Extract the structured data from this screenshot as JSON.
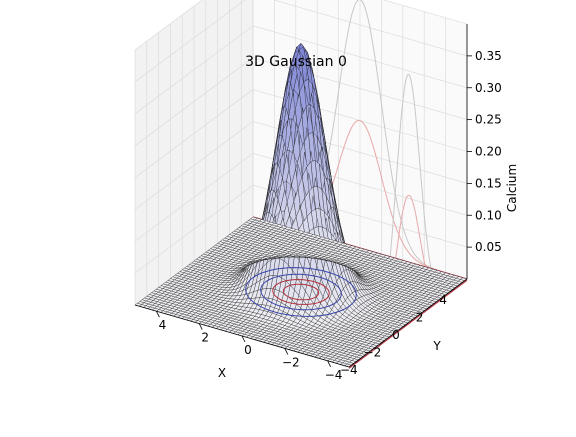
{
  "chart_data": {
    "type": "surface",
    "title": "3D Gaussian 0",
    "xlabel": "X",
    "ylabel": "Y",
    "zlabel": "Calcium",
    "xlim": [
      -5,
      5
    ],
    "ylim": [
      -5,
      5
    ],
    "zlim": [
      0,
      0.4
    ],
    "x_ticks": [
      "−4",
      "−2",
      "0",
      "2",
      "4"
    ],
    "x_tick_values": [
      -4,
      -2,
      0,
      2,
      4
    ],
    "y_ticks": [
      "−4",
      "−2",
      "0",
      "2",
      "4"
    ],
    "y_tick_values": [
      -4,
      -2,
      0,
      2,
      4
    ],
    "z_ticks": [
      "0.05",
      "0.10",
      "0.15",
      "0.20",
      "0.25",
      "0.30",
      "0.35"
    ],
    "z_tick_values": [
      0.05,
      0.1,
      0.15,
      0.2,
      0.25,
      0.3,
      0.35
    ],
    "surface": {
      "function": "gaussian",
      "peak": 0.39,
      "center_x": 0,
      "center_y": 0,
      "sigma_x": 1.0,
      "sigma_y": 1.0,
      "grid_step": 0.2,
      "face_color": "#7a82d6",
      "edge_color": "#1a1a1a"
    },
    "floor_contours": [
      0.03,
      0.1,
      0.2,
      0.3
    ],
    "marginal_projections": true,
    "grid": true,
    "colors": {
      "contour_low": "#3a46a8",
      "contour_high": "#b0303a",
      "projection_gray": "#c8c8c8",
      "projection_red": "#b83a48",
      "pane": "#f2f2f2"
    }
  }
}
